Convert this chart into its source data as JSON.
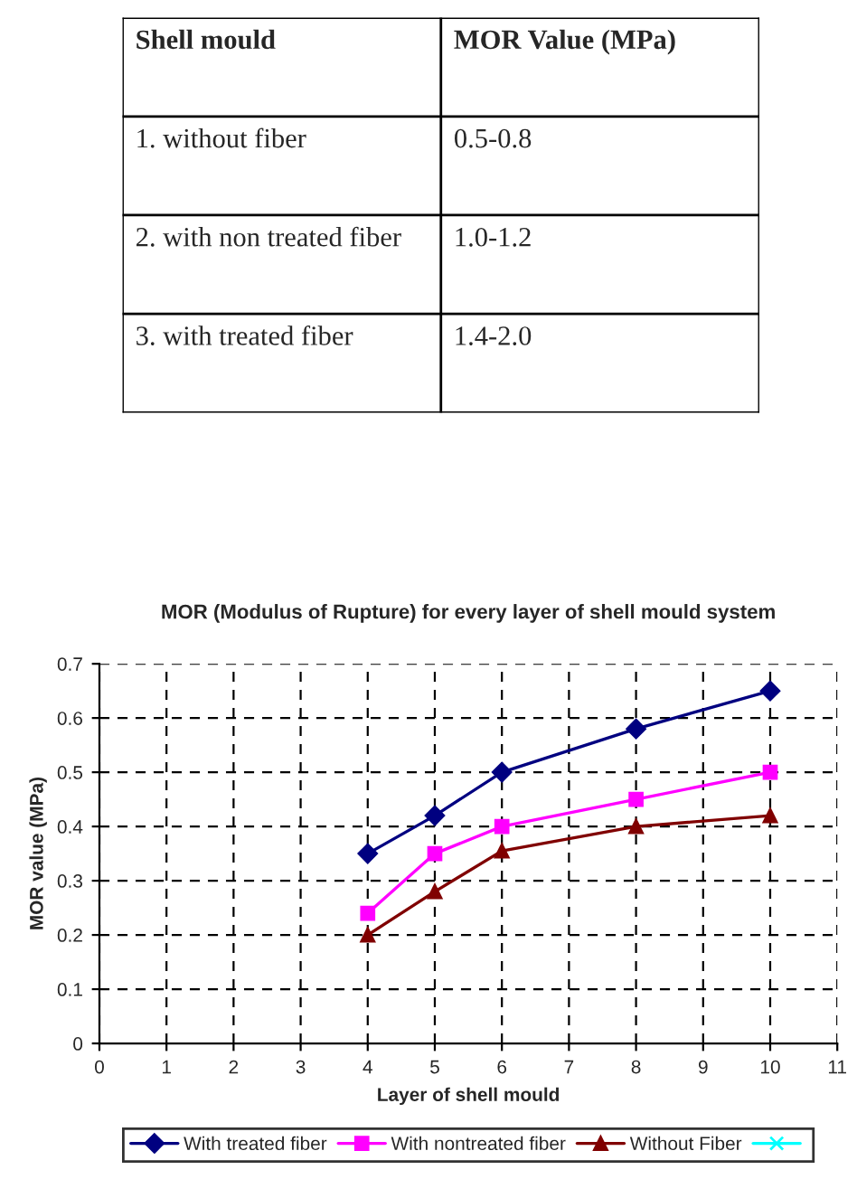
{
  "chart_data": [
    {
      "type": "other",
      "annotations": [
        "Shell mould",
        "MOR Value (MPa)",
        "1. without fiber",
        "0.5-0.8",
        "2. with non treated fiber",
        "1.0-1.2",
        "3. with treated fiber",
        "1.4-2.0"
      ]
    },
    {
      "type": "line",
      "title": "MOR (Modulus of Rupture) for every layer of shell mould system",
      "xlabel": "Layer of shell mould",
      "ylabel": "MOR value (MPa)",
      "x": [
        4,
        5,
        6,
        8,
        10
      ],
      "series": [
        {
          "name": "With treated fiber",
          "color": "#000080",
          "marker": "diamond",
          "values": [
            0.35,
            0.42,
            0.5,
            0.58,
            0.65
          ]
        },
        {
          "name": "With nontreated fiber",
          "color": "#ff00ff",
          "marker": "square",
          "values": [
            0.24,
            0.35,
            0.4,
            0.45,
            0.5
          ]
        },
        {
          "name": "Without Fiber",
          "color": "#800000",
          "marker": "triangle",
          "values": [
            0.2,
            0.28,
            0.355,
            0.4,
            0.42
          ]
        },
        {
          "color": "#00ffff",
          "marker": "cross",
          "values": [
            null,
            null,
            null,
            null,
            null
          ]
        }
      ],
      "xlim": [
        0,
        11
      ],
      "xticks": [
        0,
        1,
        2,
        3,
        4,
        5,
        6,
        7,
        8,
        9,
        10,
        11
      ],
      "ylim": [
        0,
        0.7
      ],
      "yticks": [
        0,
        0.1,
        0.2,
        0.3,
        0.4,
        0.5,
        0.6,
        0.7
      ],
      "grid": true,
      "legend": "bottom",
      "line_style": "solid"
    }
  ]
}
